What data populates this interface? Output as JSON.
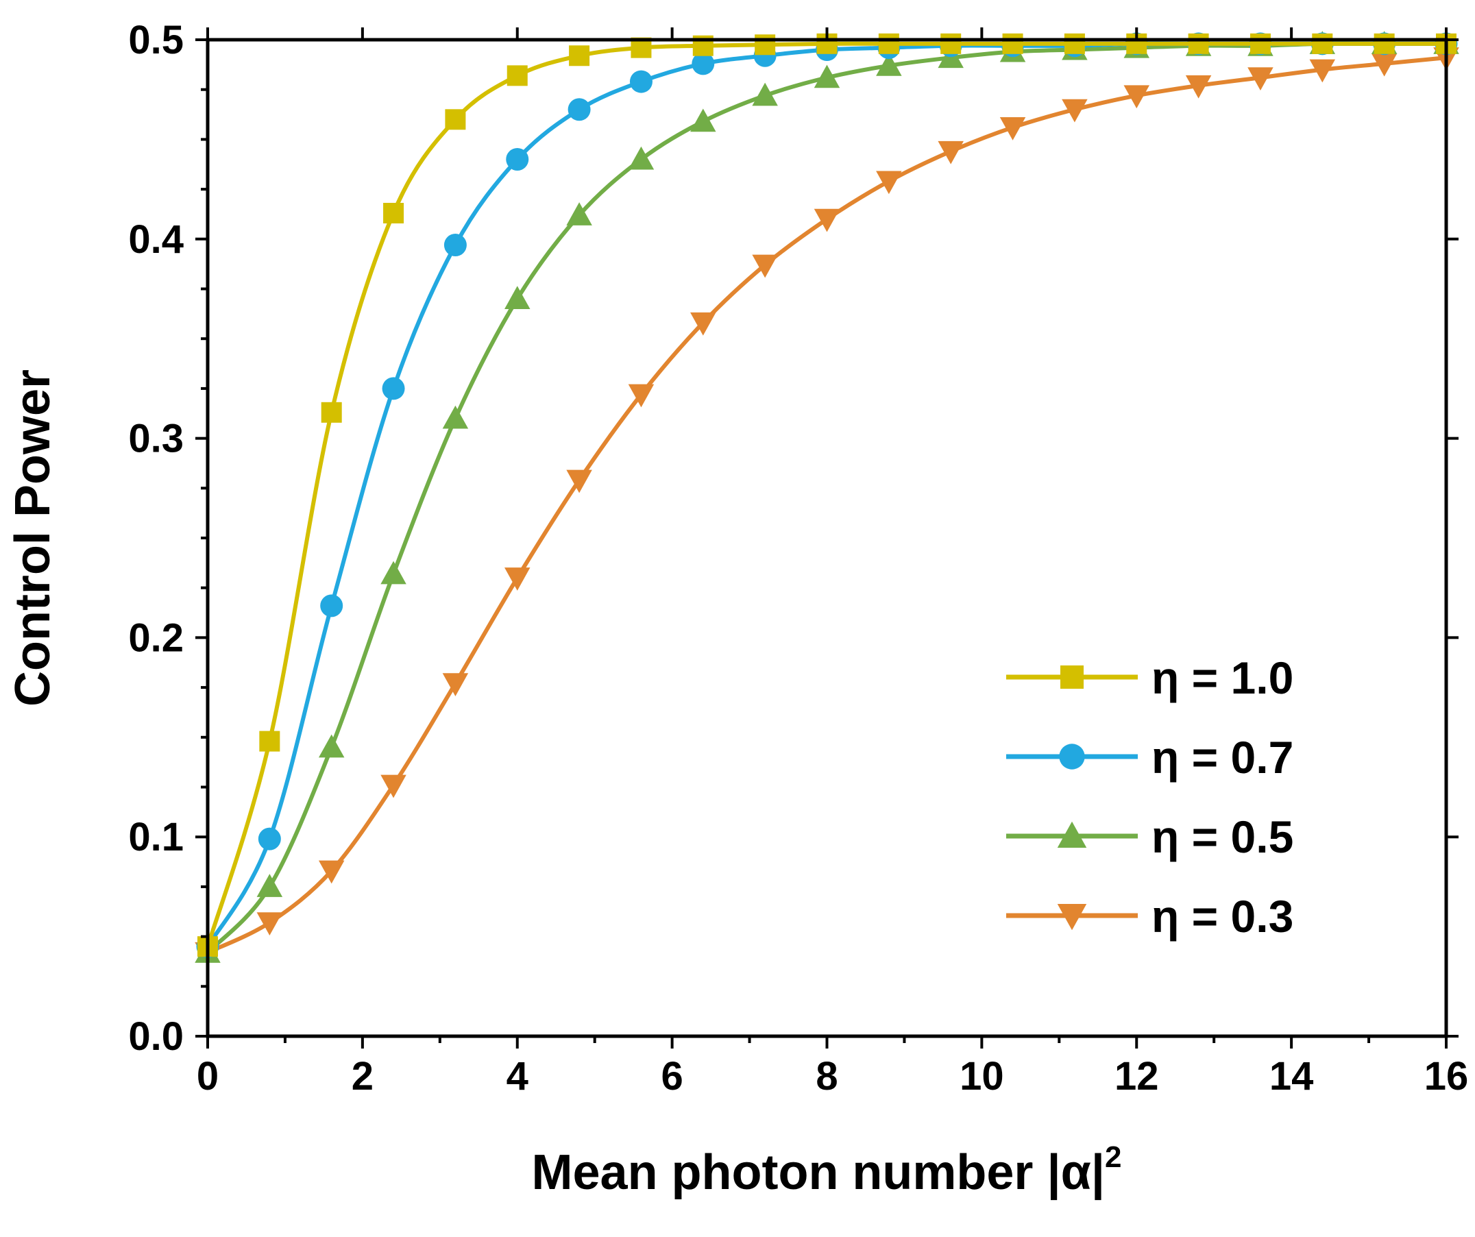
{
  "chart_data": {
    "type": "line",
    "xlabel": "Mean photon number |α|",
    "xlabel_superscript": "2",
    "ylabel": "Control Power",
    "xlim": [
      0,
      16
    ],
    "ylim": [
      0.0,
      0.5
    ],
    "x_ticks": [
      0,
      2,
      4,
      6,
      8,
      10,
      12,
      14,
      16
    ],
    "x_tick_labels": [
      "0",
      "2",
      "4",
      "6",
      "8",
      "10",
      "12",
      "14",
      "16"
    ],
    "y_ticks": [
      0.0,
      0.1,
      0.2,
      0.3,
      0.4,
      0.5
    ],
    "y_tick_labels": [
      "0.0",
      "0.1",
      "0.2",
      "0.3",
      "0.4",
      "0.5"
    ],
    "grid": false,
    "legend_position": "bottom-right",
    "x": [
      0,
      0.8,
      1.6,
      2.4,
      3.2,
      4.0,
      4.8,
      5.6,
      6.4,
      7.2,
      8.0,
      8.8,
      9.6,
      10.4,
      11.2,
      12.0,
      12.8,
      13.6,
      14.4,
      15.2,
      16.0
    ],
    "series": [
      {
        "name": "η = 1.0",
        "color": "#d4bf00",
        "marker": "square",
        "values": [
          0.045,
          0.148,
          0.313,
          0.413,
          0.46,
          0.482,
          0.492,
          0.496,
          0.497,
          0.4975,
          0.498,
          0.498,
          0.498,
          0.498,
          0.498,
          0.498,
          0.498,
          0.498,
          0.498,
          0.498,
          0.498
        ]
      },
      {
        "name": "η = 0.7",
        "color": "#22a8e0",
        "marker": "circle",
        "values": [
          0.045,
          0.099,
          0.216,
          0.325,
          0.397,
          0.44,
          0.465,
          0.479,
          0.488,
          0.492,
          0.495,
          0.496,
          0.497,
          0.497,
          0.497,
          0.498,
          0.498,
          0.498,
          0.498,
          0.498,
          0.498
        ]
      },
      {
        "name": "η = 0.5",
        "color": "#72ad47",
        "marker": "triangle-up",
        "values": [
          0.042,
          0.075,
          0.145,
          0.232,
          0.31,
          0.37,
          0.412,
          0.44,
          0.459,
          0.472,
          0.481,
          0.487,
          0.491,
          0.494,
          0.495,
          0.496,
          0.497,
          0.497,
          0.498,
          0.498,
          0.498
        ]
      },
      {
        "name": "η = 0.3",
        "color": "#e2852f",
        "marker": "triangle-down",
        "values": [
          0.042,
          0.057,
          0.083,
          0.126,
          0.177,
          0.23,
          0.279,
          0.322,
          0.358,
          0.387,
          0.41,
          0.429,
          0.444,
          0.456,
          0.465,
          0.472,
          0.477,
          0.481,
          0.485,
          0.488,
          0.491
        ]
      }
    ]
  }
}
